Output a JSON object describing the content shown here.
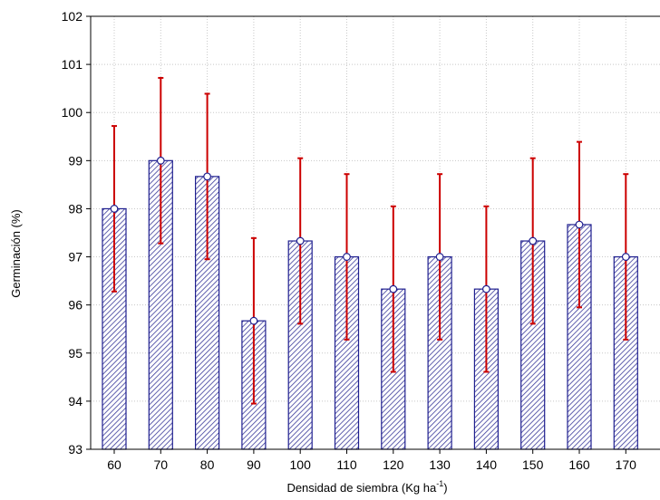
{
  "chart_data": {
    "type": "bar",
    "title": "",
    "xlabel": "Densidad de siembra (Kg ha",
    "xlabel_sup": "-1",
    "xlabel_suffix": ")",
    "ylabel": "Germinación (%)",
    "ylim": [
      93,
      102
    ],
    "yticks": [
      "93",
      "94",
      "95",
      "96",
      "97",
      "98",
      "99",
      "100",
      "101",
      "102"
    ],
    "categories": [
      "60",
      "70",
      "80",
      "90",
      "100",
      "110",
      "120",
      "130",
      "140",
      "150",
      "160",
      "170"
    ],
    "values": [
      98.0,
      99.0,
      98.67,
      95.67,
      97.33,
      97.0,
      96.33,
      97.0,
      96.33,
      97.33,
      97.67,
      97.0
    ],
    "error_low": [
      96.28,
      97.28,
      96.95,
      93.95,
      95.61,
      95.28,
      94.61,
      95.28,
      94.61,
      95.61,
      95.95,
      95.28
    ],
    "error_high": [
      99.72,
      100.72,
      100.39,
      97.39,
      99.05,
      98.72,
      98.05,
      98.72,
      98.05,
      99.05,
      99.39,
      98.72
    ],
    "grid": true,
    "colors": {
      "bar_edge": "#1f1f8f",
      "bar_hatch": "#3a3a9a",
      "error_bar": "#cc0000",
      "marker_edge": "#1f1f8f",
      "grid": "#c8c8c8"
    }
  }
}
